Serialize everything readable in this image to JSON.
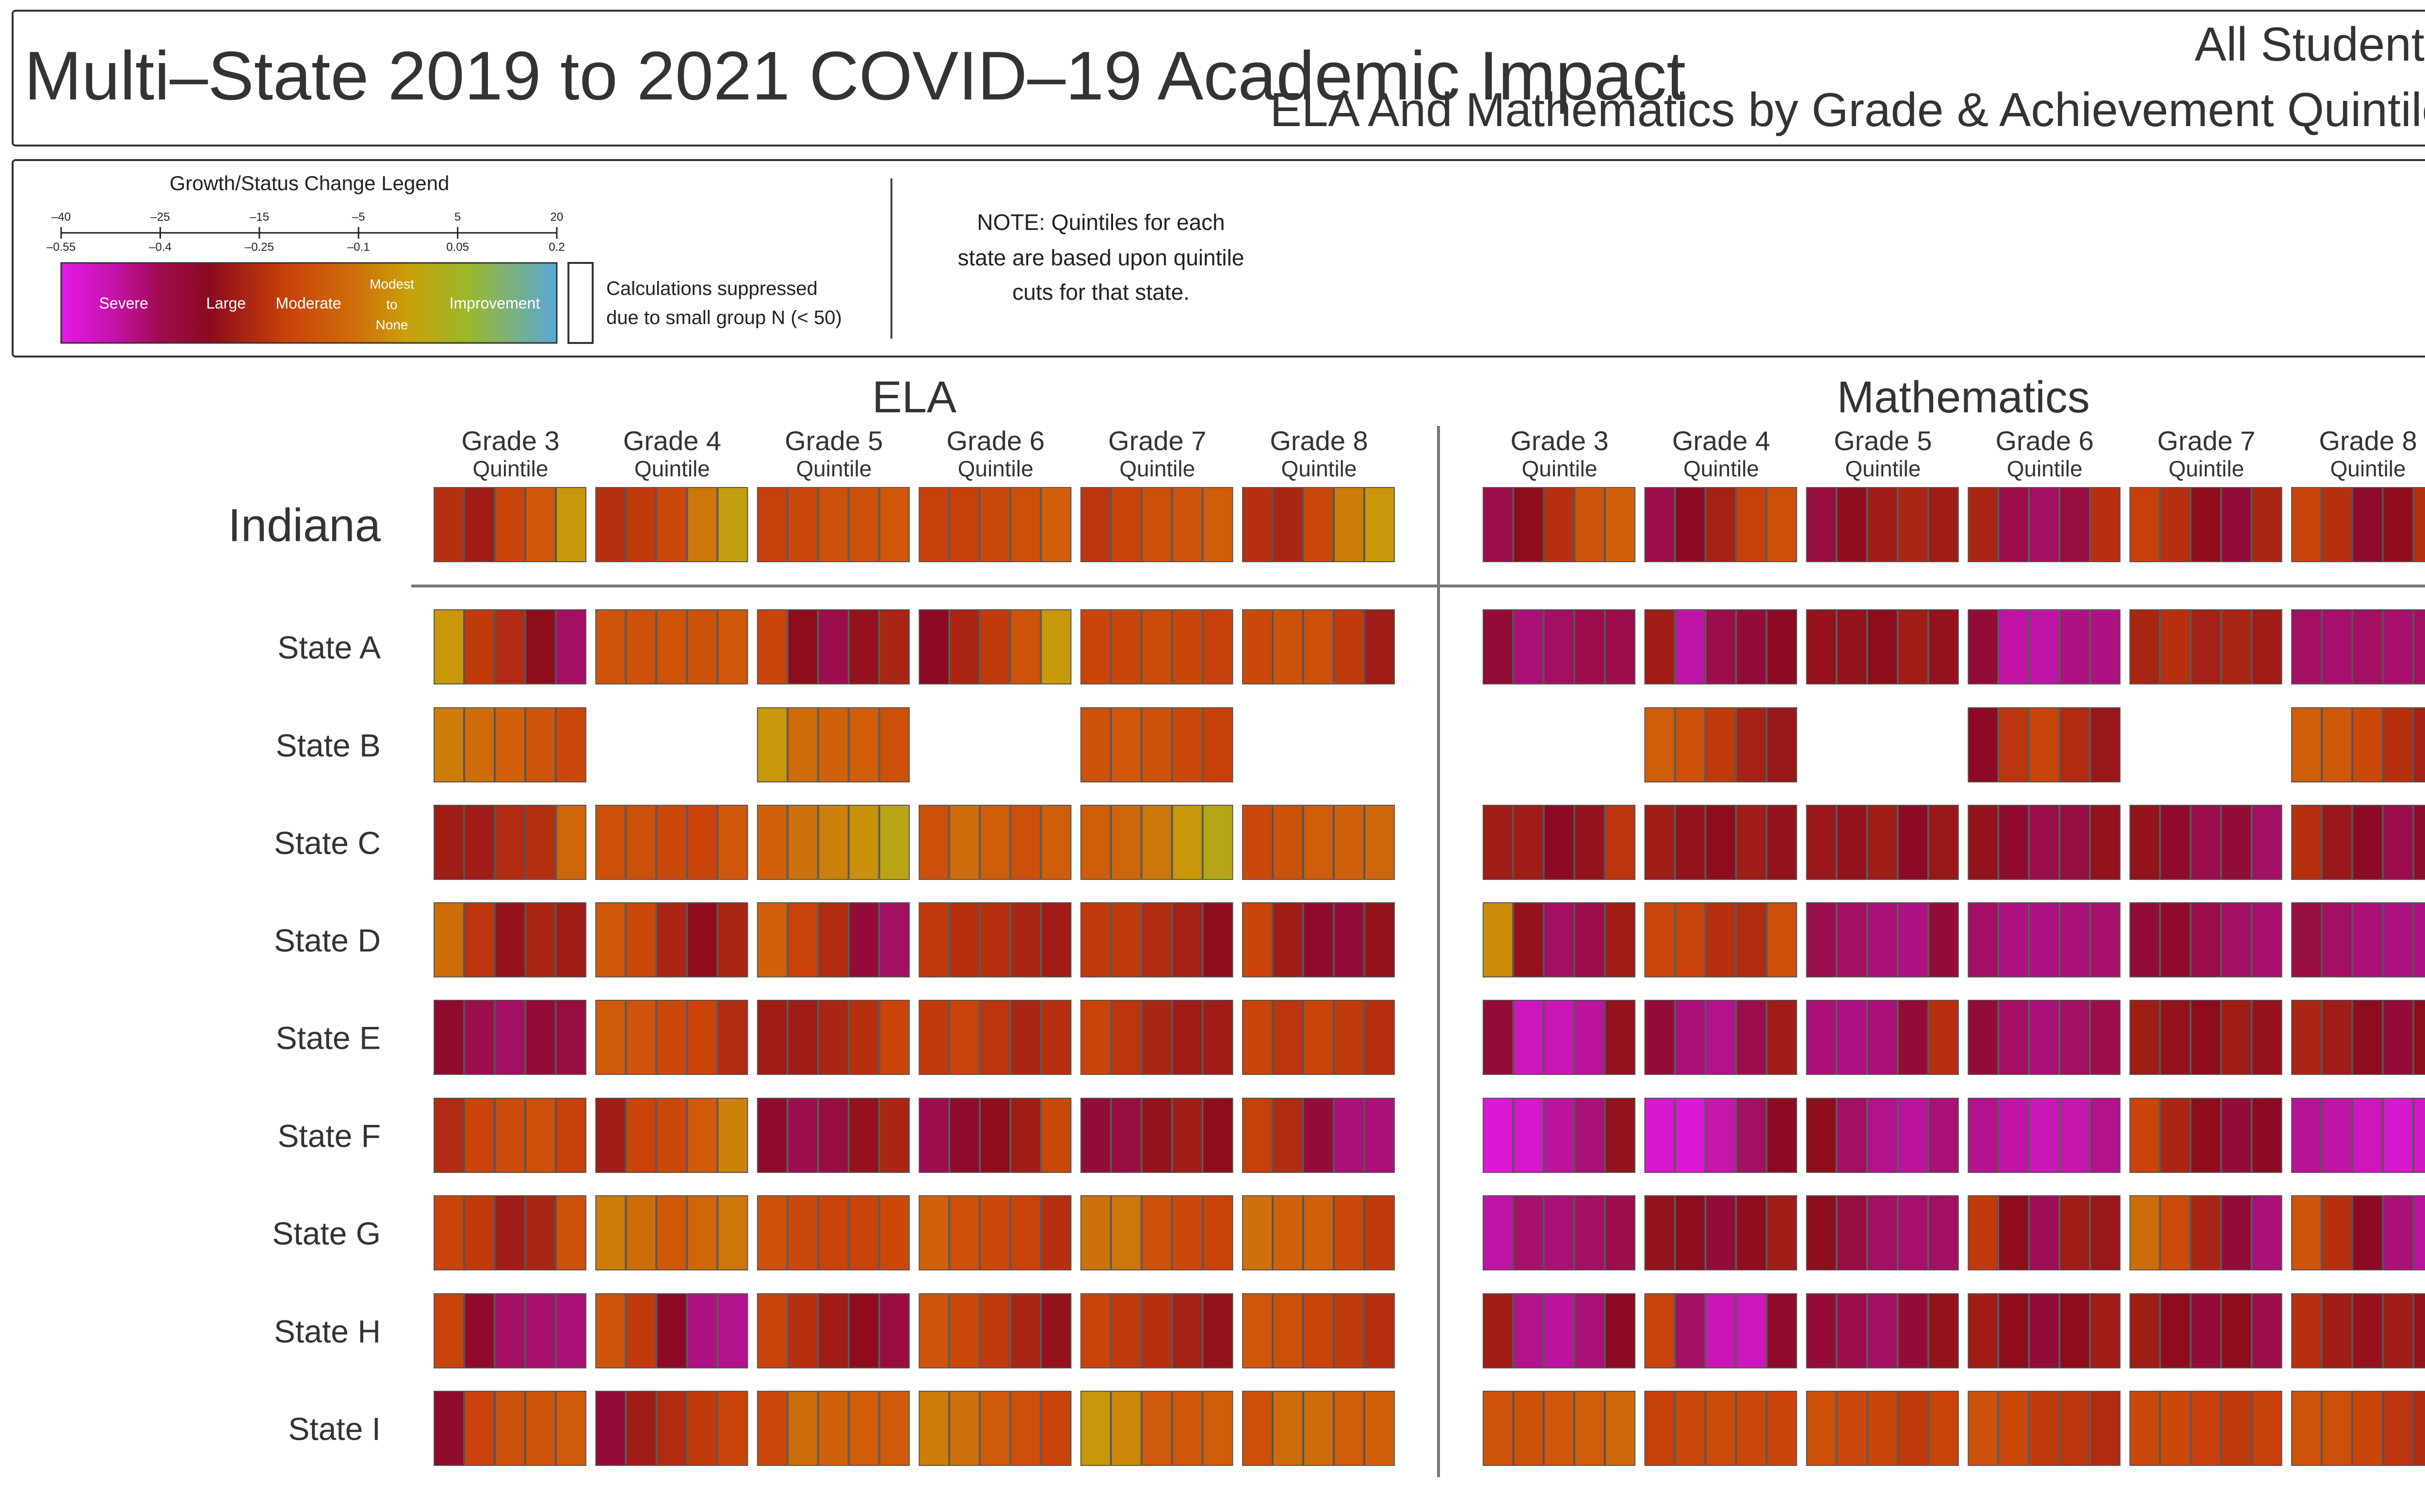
{
  "header": {
    "title": "Multi–State 2019 to 2021 COVID–19 Academic Impact",
    "right_line1": "All Students",
    "right_line2": "ELA And Mathematics by Grade & Achievement Quintile"
  },
  "legend": {
    "title": "Growth/Status Change Legend",
    "top_ticks": [
      "–40",
      "–25",
      "–15",
      "–5",
      "5",
      "20"
    ],
    "bottom_ticks": [
      "–0.55",
      "–0.4",
      "–0.25",
      "–0.1",
      "0.05",
      "0.2"
    ],
    "categories": [
      "Severe",
      "Large",
      "Moderate",
      "Modest to None",
      "Improvement"
    ],
    "suppressed_label_line1": "Calculations suppressed",
    "suppressed_label_line2": "due to small group N (< 50)",
    "note_line1": "NOTE: Quintiles for each",
    "note_line2": "state are based upon quintile",
    "note_line3": "cuts for that state.",
    "gradient_colors": [
      "#e41ae4",
      "#b3128f",
      "#8a0a1e",
      "#c8400a",
      "#d0600a",
      "#c99a0a",
      "#9ab82a",
      "#5aa8c8"
    ]
  },
  "column_sub_label": "Quintile",
  "chart_data": {
    "type": "heatmap",
    "subjects": [
      "ELA",
      "Mathematics"
    ],
    "grades": [
      "Grade 3",
      "Grade 4",
      "Grade 5",
      "Grade 6",
      "Grade 7",
      "Grade 8"
    ],
    "quintiles": 5,
    "scale_min": -0.55,
    "scale_max": 0.2,
    "scale_colors": [
      "#e41ae4",
      "#b3128f",
      "#8a0a1e",
      "#c8400a",
      "#d0600a",
      "#c99a0a",
      "#9ab82a",
      "#5aa8c8"
    ],
    "suppressed_as": "null",
    "rows": [
      {
        "state": "Indiana",
        "ELA": [
          [
            -0.26,
            -0.3,
            -0.22,
            -0.15,
            -0.02
          ],
          [
            -0.26,
            -0.24,
            -0.2,
            -0.08,
            0.0
          ],
          [
            -0.23,
            -0.2,
            -0.17,
            -0.17,
            -0.15
          ],
          [
            -0.23,
            -0.23,
            -0.2,
            -0.18,
            -0.12
          ],
          [
            -0.25,
            -0.22,
            -0.18,
            -0.16,
            -0.13
          ],
          [
            -0.26,
            -0.28,
            -0.2,
            -0.07,
            -0.02
          ]
        ],
        "Mathematics": [
          [
            -0.38,
            -0.33,
            -0.26,
            -0.16,
            -0.12
          ],
          [
            -0.38,
            -0.34,
            -0.29,
            -0.23,
            -0.18
          ],
          [
            -0.37,
            -0.33,
            -0.3,
            -0.28,
            -0.3
          ],
          [
            -0.28,
            -0.38,
            -0.4,
            -0.37,
            -0.26
          ],
          [
            -0.23,
            -0.26,
            -0.33,
            -0.36,
            -0.28
          ],
          [
            -0.22,
            -0.26,
            -0.35,
            -0.33,
            -0.26
          ]
        ]
      },
      {
        "state": "State A",
        "ELA": [
          [
            -0.02,
            -0.24,
            -0.27,
            -0.33,
            -0.4
          ],
          [
            -0.16,
            -0.17,
            -0.16,
            -0.17,
            -0.15
          ],
          [
            -0.22,
            -0.33,
            -0.38,
            -0.32,
            -0.28
          ],
          [
            -0.34,
            -0.28,
            -0.24,
            -0.16,
            -0.02
          ],
          [
            -0.22,
            -0.21,
            -0.19,
            -0.21,
            -0.23
          ],
          [
            -0.2,
            -0.17,
            -0.18,
            -0.24,
            -0.3
          ]
        ],
        "Mathematics": [
          [
            -0.36,
            -0.42,
            -0.4,
            -0.38,
            -0.38
          ],
          [
            -0.3,
            -0.47,
            -0.38,
            -0.36,
            -0.34
          ],
          [
            -0.32,
            -0.32,
            -0.33,
            -0.3,
            -0.32
          ],
          [
            -0.36,
            -0.47,
            -0.47,
            -0.43,
            -0.43
          ],
          [
            -0.28,
            -0.26,
            -0.29,
            -0.28,
            -0.3
          ],
          [
            -0.4,
            -0.41,
            -0.4,
            -0.41,
            -0.4
          ]
        ]
      },
      {
        "state": "State B",
        "ELA": [
          [
            -0.07,
            -0.1,
            -0.12,
            -0.16,
            -0.2
          ],
          null,
          [
            -0.02,
            -0.1,
            -0.12,
            -0.13,
            -0.18
          ],
          null,
          [
            -0.17,
            -0.15,
            -0.17,
            -0.2,
            -0.23
          ],
          null
        ],
        "Mathematics": [
          null,
          [
            -0.13,
            -0.18,
            -0.24,
            -0.29,
            -0.31
          ],
          null,
          [
            -0.34,
            -0.25,
            -0.22,
            -0.27,
            -0.31
          ],
          null,
          [
            -0.13,
            -0.15,
            -0.2,
            -0.26,
            -0.29
          ]
        ]
      },
      {
        "state": "State C",
        "ELA": [
          [
            -0.3,
            -0.3,
            -0.27,
            -0.26,
            -0.11
          ],
          [
            -0.18,
            -0.18,
            -0.2,
            -0.22,
            -0.15
          ],
          [
            -0.12,
            -0.09,
            -0.06,
            -0.03,
            0.02
          ],
          [
            -0.18,
            -0.1,
            -0.13,
            -0.18,
            -0.13
          ],
          [
            -0.13,
            -0.11,
            -0.08,
            -0.02,
            0.03
          ],
          [
            -0.2,
            -0.17,
            -0.13,
            -0.12,
            -0.11
          ]
        ],
        "Mathematics": [
          [
            -0.3,
            -0.3,
            -0.34,
            -0.32,
            -0.25
          ],
          [
            -0.3,
            -0.32,
            -0.33,
            -0.3,
            -0.32
          ],
          [
            -0.31,
            -0.32,
            -0.3,
            -0.34,
            -0.31
          ],
          [
            -0.32,
            -0.35,
            -0.38,
            -0.37,
            -0.32
          ],
          [
            -0.32,
            -0.35,
            -0.38,
            -0.36,
            -0.4
          ],
          [
            -0.26,
            -0.31,
            -0.34,
            -0.38,
            -0.35
          ]
        ]
      },
      {
        "state": "State D",
        "ELA": [
          [
            -0.1,
            -0.25,
            -0.32,
            -0.28,
            -0.3
          ],
          [
            -0.15,
            -0.2,
            -0.28,
            -0.33,
            -0.28
          ],
          [
            -0.12,
            -0.22,
            -0.27,
            -0.36,
            -0.4
          ],
          [
            -0.24,
            -0.26,
            -0.26,
            -0.28,
            -0.3
          ],
          [
            -0.24,
            -0.24,
            -0.27,
            -0.29,
            -0.33
          ],
          [
            -0.22,
            -0.3,
            -0.35,
            -0.36,
            -0.32
          ]
        ],
        "Mathematics": [
          [
            -0.04,
            -0.32,
            -0.4,
            -0.38,
            -0.3
          ],
          [
            -0.2,
            -0.22,
            -0.26,
            -0.27,
            -0.18
          ],
          [
            -0.38,
            -0.4,
            -0.42,
            -0.43,
            -0.36
          ],
          [
            -0.4,
            -0.43,
            -0.43,
            -0.42,
            -0.41
          ],
          [
            -0.36,
            -0.35,
            -0.38,
            -0.4,
            -0.41
          ],
          [
            -0.37,
            -0.4,
            -0.42,
            -0.43,
            -0.43
          ]
        ]
      },
      {
        "state": "State E",
        "ELA": [
          [
            -0.35,
            -0.38,
            -0.4,
            -0.36,
            -0.37
          ],
          [
            -0.14,
            -0.16,
            -0.2,
            -0.22,
            -0.27
          ],
          [
            -0.3,
            -0.3,
            -0.28,
            -0.26,
            -0.22
          ],
          [
            -0.24,
            -0.22,
            -0.25,
            -0.28,
            -0.26
          ],
          [
            -0.22,
            -0.25,
            -0.28,
            -0.3,
            -0.3
          ],
          [
            -0.22,
            -0.25,
            -0.22,
            -0.24,
            -0.26
          ]
        ],
        "Mathematics": [
          [
            -0.36,
            -0.5,
            -0.49,
            -0.46,
            -0.32
          ],
          [
            -0.36,
            -0.42,
            -0.44,
            -0.38,
            -0.3
          ],
          [
            -0.42,
            -0.43,
            -0.42,
            -0.36,
            -0.26
          ],
          [
            -0.36,
            -0.4,
            -0.42,
            -0.4,
            -0.38
          ],
          [
            -0.3,
            -0.32,
            -0.33,
            -0.3,
            -0.32
          ],
          [
            -0.28,
            -0.3,
            -0.33,
            -0.36,
            -0.33
          ]
        ]
      },
      {
        "state": "State F",
        "ELA": [
          [
            -0.27,
            -0.22,
            -0.19,
            -0.18,
            -0.23
          ],
          [
            -0.3,
            -0.22,
            -0.2,
            -0.14,
            -0.06
          ],
          [
            -0.35,
            -0.38,
            -0.37,
            -0.32,
            -0.28
          ],
          [
            -0.38,
            -0.35,
            -0.33,
            -0.3,
            -0.2
          ],
          [
            -0.36,
            -0.37,
            -0.32,
            -0.3,
            -0.33
          ],
          [
            -0.23,
            -0.27,
            -0.36,
            -0.42,
            -0.42
          ]
        ],
        "Mathematics": [
          [
            -0.53,
            -0.52,
            -0.46,
            -0.42,
            -0.32
          ],
          [
            -0.52,
            -0.53,
            -0.48,
            -0.4,
            -0.34
          ],
          [
            -0.33,
            -0.4,
            -0.44,
            -0.46,
            -0.42
          ],
          [
            -0.44,
            -0.47,
            -0.49,
            -0.48,
            -0.44
          ],
          [
            -0.22,
            -0.28,
            -0.33,
            -0.36,
            -0.34
          ],
          [
            -0.45,
            -0.47,
            -0.5,
            -0.52,
            -0.51
          ]
        ]
      },
      {
        "state": "State G",
        "ELA": [
          [
            -0.22,
            -0.24,
            -0.3,
            -0.28,
            -0.17
          ],
          [
            -0.07,
            -0.1,
            -0.15,
            -0.11,
            -0.08
          ],
          [
            -0.18,
            -0.2,
            -0.22,
            -0.22,
            -0.2
          ],
          [
            -0.12,
            -0.18,
            -0.2,
            -0.22,
            -0.26
          ],
          [
            -0.09,
            -0.08,
            -0.18,
            -0.2,
            -0.22
          ],
          [
            -0.09,
            -0.12,
            -0.12,
            -0.2,
            -0.24
          ]
        ],
        "Mathematics": [
          [
            -0.47,
            -0.41,
            -0.42,
            -0.4,
            -0.38
          ],
          [
            -0.32,
            -0.33,
            -0.36,
            -0.33,
            -0.3
          ],
          [
            -0.33,
            -0.37,
            -0.4,
            -0.41,
            -0.4
          ],
          [
            -0.24,
            -0.33,
            -0.39,
            -0.3,
            -0.31
          ],
          [
            -0.1,
            -0.19,
            -0.28,
            -0.36,
            -0.42
          ],
          [
            -0.16,
            -0.26,
            -0.34,
            -0.42,
            -0.46
          ]
        ]
      },
      {
        "state": "State H",
        "ELA": [
          [
            -0.22,
            -0.35,
            -0.4,
            -0.41,
            -0.42
          ],
          [
            -0.16,
            -0.24,
            -0.34,
            -0.43,
            -0.44
          ],
          [
            -0.22,
            -0.26,
            -0.3,
            -0.33,
            -0.37
          ],
          [
            -0.16,
            -0.2,
            -0.24,
            -0.28,
            -0.32
          ],
          [
            -0.22,
            -0.24,
            -0.26,
            -0.29,
            -0.32
          ],
          [
            -0.15,
            -0.18,
            -0.22,
            -0.24,
            -0.26
          ]
        ],
        "Mathematics": [
          [
            -0.3,
            -0.44,
            -0.46,
            -0.42,
            -0.34
          ],
          [
            -0.22,
            -0.4,
            -0.49,
            -0.5,
            -0.35
          ],
          [
            -0.36,
            -0.38,
            -0.4,
            -0.36,
            -0.32
          ],
          [
            -0.3,
            -0.33,
            -0.36,
            -0.33,
            -0.3
          ],
          [
            -0.3,
            -0.33,
            -0.36,
            -0.33,
            -0.38
          ],
          [
            -0.26,
            -0.3,
            -0.32,
            -0.3,
            -0.32
          ]
        ]
      },
      {
        "state": "State I",
        "ELA": [
          [
            -0.35,
            -0.22,
            -0.17,
            -0.16,
            -0.14
          ],
          [
            -0.36,
            -0.3,
            -0.27,
            -0.24,
            -0.22
          ],
          [
            -0.2,
            -0.1,
            -0.12,
            -0.13,
            -0.14
          ],
          [
            -0.07,
            -0.09,
            -0.14,
            -0.18,
            -0.22
          ],
          [
            -0.02,
            -0.05,
            -0.14,
            -0.15,
            -0.13
          ],
          [
            -0.18,
            -0.1,
            -0.1,
            -0.13,
            -0.12
          ]
        ],
        "Mathematics": [
          [
            -0.16,
            -0.17,
            -0.15,
            -0.13,
            -0.11
          ],
          [
            -0.23,
            -0.2,
            -0.19,
            -0.2,
            -0.22
          ],
          [
            -0.18,
            -0.2,
            -0.21,
            -0.24,
            -0.22
          ],
          [
            -0.17,
            -0.2,
            -0.24,
            -0.25,
            -0.27
          ],
          [
            -0.2,
            -0.2,
            -0.23,
            -0.24,
            -0.23
          ],
          [
            -0.16,
            -0.18,
            -0.21,
            -0.25,
            -0.27
          ]
        ]
      }
    ]
  }
}
